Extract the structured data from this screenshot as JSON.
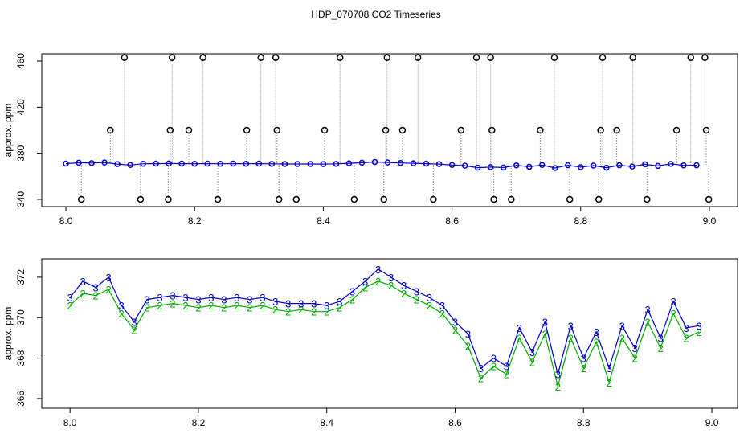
{
  "chart_data": [
    {
      "type": "scatter",
      "title": "HDP_070708  CO2 Timeseries",
      "ylabel": "approx. ppm",
      "xlim": [
        7.9625,
        9.0437
      ],
      "ylim": [
        333.7,
        466.3
      ],
      "xticks": [
        {
          "value": 8.0,
          "label": "8.0"
        },
        {
          "value": 8.2,
          "label": "8.2"
        },
        {
          "value": 8.4,
          "label": "8.4"
        },
        {
          "value": 8.6,
          "label": "8.6"
        },
        {
          "value": 8.8,
          "label": "8.8"
        },
        {
          "value": 9.0,
          "label": "9.0"
        }
      ],
      "yticks": [
        340,
        380,
        420,
        460
      ],
      "series": [
        {
          "style": "circles",
          "color": "#0000cc",
          "x": [
            8.0,
            8.02,
            8.04,
            8.06,
            8.08,
            8.1,
            8.12,
            8.14,
            8.16,
            8.18,
            8.2,
            8.22,
            8.24,
            8.26,
            8.28,
            8.3,
            8.32,
            8.34,
            8.36,
            8.38,
            8.4,
            8.42,
            8.44,
            8.46,
            8.48,
            8.5,
            8.52,
            8.54,
            8.56,
            8.58,
            8.6,
            8.62,
            8.64,
            8.66,
            8.68,
            8.7,
            8.72,
            8.74,
            8.76,
            8.78,
            8.8,
            8.82,
            8.84,
            8.86,
            8.88,
            8.9,
            8.92,
            8.94,
            8.96,
            8.98
          ],
          "values": [
            371,
            371.8,
            371.5,
            372,
            370.6,
            369.8,
            370.9,
            371,
            371.1,
            371,
            370.9,
            371,
            370.9,
            371,
            370.9,
            371,
            370.8,
            370.7,
            370.7,
            370.7,
            370.6,
            370.8,
            371.3,
            371.8,
            372.4,
            372,
            371.6,
            371.3,
            371,
            370.6,
            369.8,
            369.2,
            367.5,
            368,
            367.6,
            369.5,
            368.3,
            369.8,
            367.2,
            369.6,
            368,
            369.3,
            367.5,
            369.6,
            368.5,
            370.4,
            369,
            370.8,
            369.5,
            369.6
          ]
        },
        {
          "style": "stem",
          "color": "#000000",
          "x": [
            8.024,
            8.069,
            8.091,
            8.116,
            8.159,
            8.162,
            8.165,
            8.191,
            8.213,
            8.236,
            8.281,
            8.303,
            8.326,
            8.328,
            8.331,
            8.358,
            8.402,
            8.426,
            8.448,
            8.494,
            8.497,
            8.499,
            8.523,
            8.547,
            8.571,
            8.614,
            8.638,
            8.66,
            8.662,
            8.665,
            8.692,
            8.737,
            8.759,
            8.783,
            8.828,
            8.831,
            8.834,
            8.856,
            8.881,
            8.903,
            8.949,
            8.971,
            8.993,
            8.995,
            8.999
          ],
          "values": [
            340,
            400,
            463,
            340,
            340,
            400,
            463,
            400,
            463,
            340,
            400,
            463,
            463,
            400,
            340,
            340,
            400,
            463,
            340,
            340,
            400,
            463,
            400,
            463,
            340,
            400,
            463,
            463,
            400,
            340,
            340,
            400,
            463,
            340,
            340,
            400,
            463,
            400,
            463,
            340,
            400,
            463,
            463,
            400,
            340
          ]
        }
      ]
    },
    {
      "type": "scatter",
      "ylabel": "approx. ppm",
      "xlim": [
        7.956,
        9.04
      ],
      "ylim": [
        365.52,
        372.91
      ],
      "xticks": [
        {
          "value": 8.0,
          "label": "8.0"
        },
        {
          "value": 8.2,
          "label": "8.2"
        },
        {
          "value": 8.4,
          "label": "8.4"
        },
        {
          "value": 8.6,
          "label": "8.6"
        },
        {
          "value": 8.8,
          "label": "8.8"
        },
        {
          "value": 9.0,
          "label": "9.0"
        }
      ],
      "yticks": [
        366,
        368,
        370,
        372
      ],
      "series": [
        {
          "style": "text",
          "marker": "2",
          "color": "#00aa00",
          "x": [
            8.0,
            8.02,
            8.04,
            8.06,
            8.08,
            8.1,
            8.12,
            8.14,
            8.16,
            8.18,
            8.2,
            8.22,
            8.24,
            8.26,
            8.28,
            8.3,
            8.32,
            8.34,
            8.36,
            8.38,
            8.4,
            8.42,
            8.44,
            8.46,
            8.48,
            8.5,
            8.52,
            8.54,
            8.56,
            8.58,
            8.6,
            8.62,
            8.64,
            8.66,
            8.68,
            8.7,
            8.72,
            8.74,
            8.76,
            8.78,
            8.8,
            8.82,
            8.84,
            8.86,
            8.88,
            8.9,
            8.92,
            8.94,
            8.96,
            8.98
          ],
          "values": [
            370.6,
            371.2,
            371.1,
            371.4,
            370.2,
            369.4,
            370.5,
            370.6,
            370.7,
            370.6,
            370.5,
            370.6,
            370.5,
            370.6,
            370.5,
            370.6,
            370.4,
            370.3,
            370.4,
            370.3,
            370.3,
            370.5,
            370.9,
            371.5,
            371.8,
            371.6,
            371.2,
            370.9,
            370.6,
            370.2,
            369.4,
            368.6,
            367,
            367.6,
            367.2,
            369,
            367.8,
            369.2,
            366.6,
            369,
            367.5,
            368.8,
            366.8,
            369,
            368,
            369.8,
            368.5,
            370.2,
            369,
            369.3
          ]
        },
        {
          "style": "text",
          "marker": "3",
          "color": "#0000cc",
          "x": [
            8.0,
            8.02,
            8.04,
            8.06,
            8.08,
            8.1,
            8.12,
            8.14,
            8.16,
            8.18,
            8.2,
            8.22,
            8.24,
            8.26,
            8.28,
            8.3,
            8.32,
            8.34,
            8.36,
            8.38,
            8.4,
            8.42,
            8.44,
            8.46,
            8.48,
            8.5,
            8.52,
            8.54,
            8.56,
            8.58,
            8.6,
            8.62,
            8.64,
            8.66,
            8.68,
            8.7,
            8.72,
            8.74,
            8.76,
            8.78,
            8.8,
            8.82,
            8.84,
            8.86,
            8.88,
            8.9,
            8.92,
            8.94,
            8.96,
            8.98
          ],
          "values": [
            371,
            371.8,
            371.5,
            372,
            370.6,
            369.8,
            370.9,
            371,
            371.1,
            371,
            370.9,
            371,
            370.9,
            371,
            370.9,
            371,
            370.8,
            370.7,
            370.7,
            370.7,
            370.6,
            370.8,
            371.3,
            371.8,
            372.4,
            372,
            371.6,
            371.3,
            371,
            370.6,
            369.8,
            369.2,
            367.5,
            368,
            367.6,
            369.5,
            368.3,
            369.8,
            367.2,
            369.6,
            368,
            369.3,
            367.5,
            369.6,
            368.5,
            370.4,
            369,
            370.8,
            369.5,
            369.6
          ]
        }
      ]
    }
  ]
}
